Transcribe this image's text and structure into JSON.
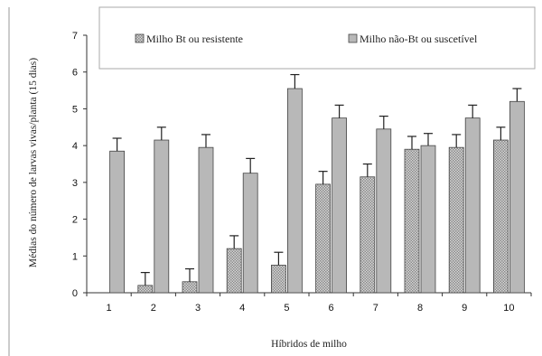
{
  "chart_data": {
    "type": "bar",
    "xlabel": "Híbridos de milho",
    "ylabel": "Médias do número de larvas vivas/planta (15 dias)",
    "ylim": [
      0,
      7
    ],
    "yticks": [
      0,
      1,
      2,
      3,
      4,
      5,
      6,
      7
    ],
    "categories": [
      "1",
      "2",
      "3",
      "4",
      "5",
      "6",
      "7",
      "8",
      "9",
      "10"
    ],
    "series": [
      {
        "name": "Milho Bt ou resistente",
        "values": [
          0,
          0.2,
          0.3,
          1.2,
          0.75,
          2.95,
          3.15,
          3.9,
          3.95,
          4.15
        ],
        "errors": [
          0,
          0.35,
          0.35,
          0.35,
          0.35,
          0.35,
          0.35,
          0.35,
          0.35,
          0.35
        ],
        "pattern": "checked"
      },
      {
        "name": "Milho não-Bt ou suscetível",
        "values": [
          3.85,
          4.15,
          3.95,
          3.25,
          5.55,
          4.75,
          4.45,
          4.0,
          4.75,
          5.2
        ],
        "errors": [
          0.35,
          0.35,
          0.35,
          0.4,
          0.38,
          0.35,
          0.35,
          0.33,
          0.35,
          0.35
        ],
        "pattern": "solid"
      }
    ],
    "grid": false,
    "legend_position": "top",
    "colors": {
      "solid_bar": "#b8b8b8",
      "checked_bar": "#c4c4c4",
      "outline": "#444444"
    }
  }
}
